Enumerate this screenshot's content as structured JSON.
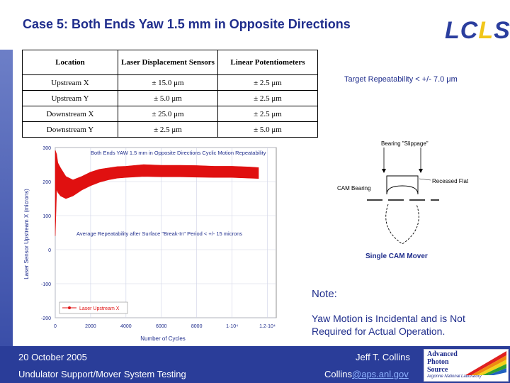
{
  "title": "Case 5: Both Ends Yaw 1.5 mm in Opposite Directions",
  "logo": {
    "l1": "L",
    "c": "C",
    "l2": "L",
    "s": "S"
  },
  "table": {
    "headers": [
      "Location",
      "Laser Displacement Sensors",
      "Linear Potentiometers"
    ],
    "rows": [
      [
        "Upstream X",
        "± 15.0 μm",
        "± 2.5 μm"
      ],
      [
        "Upstream Y",
        "± 5.0 μm",
        "± 2.5 μm"
      ],
      [
        "Downstream X",
        "± 25.0 μm",
        "± 2.5 μm"
      ],
      [
        "Downstream Y",
        "± 2.5 μm",
        "± 5.0 μm"
      ]
    ]
  },
  "target": "Target Repeatability < +/- 7.0 μm",
  "chart_data": {
    "type": "line",
    "title": "Both Ends YAW 1.5 mm in Opposite Directions Cyclic Motion Repeatability",
    "xlabel": "Number of Cycles",
    "ylabel": "Laser Sensor Upstream X (microns)",
    "xlim": [
      0,
      12500
    ],
    "ylim": [
      -200,
      300
    ],
    "xticks": [
      "0",
      "2000",
      "4000",
      "6000",
      "8000",
      "1·10⁴",
      "1.2·10⁴"
    ],
    "yticks": [
      "300",
      "200",
      "100",
      "0",
      "-100",
      "-200"
    ],
    "annotation": "Average Repeatability after Surface \"Break-In\" Period < +/- 15 microns",
    "legend": "Laser Upstream X",
    "series": [
      {
        "name": "Laser Upstream X",
        "x": [
          0,
          80,
          150,
          300,
          600,
          1000,
          1500,
          2000,
          2500,
          3000,
          3500,
          4000,
          5000,
          6000,
          7000,
          8000,
          9000,
          10000,
          11000,
          11500
        ],
        "upper": [
          292,
          280,
          255,
          240,
          215,
          205,
          215,
          228,
          236,
          240,
          244,
          245,
          250,
          248,
          248,
          247,
          245,
          245,
          243,
          241
        ],
        "lower": [
          40,
          178,
          168,
          158,
          150,
          158,
          175,
          188,
          198,
          205,
          210,
          212,
          215,
          214,
          214,
          213,
          212,
          212,
          210,
          209
        ]
      }
    ],
    "grid": true,
    "legend_position": "bottom-left"
  },
  "diagram": {
    "label_top": "Bearing \"Slippage\"",
    "label_recessed": "Recessed Flat",
    "label_cam": "CAM Bearing",
    "caption": "Single CAM Mover"
  },
  "note": {
    "heading": "Note:",
    "body": "Yaw Motion is Incidental and is Not Required for Actual Operation."
  },
  "footer": {
    "date": "20 October  2005",
    "event": "Undulator Support/Mover System Testing",
    "author": "Jeff T. Collins",
    "email_user": "Collins",
    "email_domain": "@aps.anl.gov"
  },
  "aps": {
    "line1": "Advanced",
    "line2": "Photon",
    "line3": "Source",
    "sub": "Argonne National Laboratory"
  },
  "colors": {
    "accent": "#1f2d8c",
    "trace": "#e01010",
    "footer": "#2a3d99"
  }
}
